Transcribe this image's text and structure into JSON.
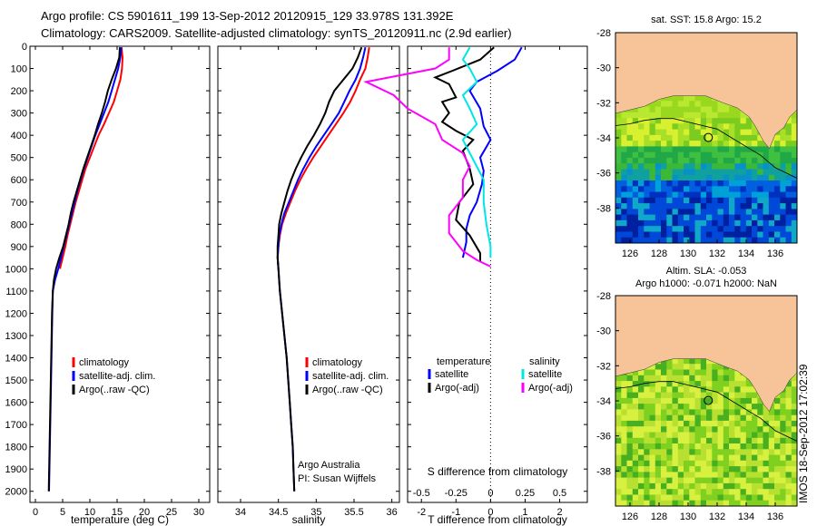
{
  "header": {
    "line1": "Argo profile: CS 5901611_199 13-Sep-2012 20120915_129 33.978S 131.392E",
    "line2": "Climatology: CARS2009. Satellite-adjusted climatology: synTS_20120911.nc (2.9d earlier)"
  },
  "side_stamp": "IMOS 18-Sep-2012 17:02:39",
  "colors": {
    "climatology": "#ff0000",
    "satellite": "#0000ff",
    "argo": "#000000",
    "salinity_satellite": "#00e5e5",
    "salinity_argo": "#ff00ff",
    "land": "#f7c49a"
  },
  "chart_data": [
    {
      "type": "line",
      "id": "temperature",
      "xlabel": "temperature (deg C)",
      "xlim": [
        -1,
        32
      ],
      "ylim": [
        2050,
        0
      ],
      "xticks": [
        0,
        5,
        10,
        15,
        20,
        25,
        30
      ],
      "yticks": [
        0,
        100,
        200,
        300,
        400,
        500,
        600,
        700,
        800,
        900,
        1000,
        1100,
        1200,
        1300,
        1400,
        1500,
        1600,
        1700,
        1800,
        1900,
        2000
      ],
      "legend": [
        "climatology",
        "satellite-adj. clim.",
        "Argo(..raw -QC)"
      ],
      "series": [
        {
          "name": "climatology",
          "color": "#ff0000",
          "points": [
            [
              15.8,
              5
            ],
            [
              16.0,
              50
            ],
            [
              15.9,
              100
            ],
            [
              15.6,
              150
            ],
            [
              15.0,
              200
            ],
            [
              14.4,
              250
            ],
            [
              13.5,
              300
            ],
            [
              12.6,
              350
            ],
            [
              11.6,
              400
            ],
            [
              10.8,
              450
            ],
            [
              10.0,
              500
            ],
            [
              9.2,
              550
            ],
            [
              8.6,
              600
            ],
            [
              8.0,
              650
            ],
            [
              7.4,
              700
            ],
            [
              6.9,
              750
            ],
            [
              6.4,
              800
            ],
            [
              5.9,
              850
            ],
            [
              5.5,
              900
            ],
            [
              5.0,
              950
            ],
            [
              4.5,
              1000
            ]
          ]
        },
        {
          "name": "satellite-adj. clim.",
          "color": "#0000ff",
          "points": [
            [
              15.8,
              5
            ],
            [
              15.6,
              50
            ],
            [
              15.2,
              100
            ],
            [
              14.6,
              150
            ],
            [
              14.0,
              200
            ],
            [
              13.4,
              250
            ],
            [
              12.6,
              300
            ],
            [
              11.8,
              350
            ],
            [
              11.0,
              400
            ],
            [
              10.3,
              450
            ],
            [
              9.6,
              500
            ],
            [
              8.9,
              550
            ],
            [
              8.3,
              600
            ],
            [
              7.7,
              650
            ],
            [
              7.2,
              700
            ],
            [
              6.7,
              750
            ],
            [
              6.2,
              800
            ],
            [
              5.7,
              850
            ],
            [
              5.2,
              900
            ],
            [
              4.7,
              950
            ],
            [
              4.2,
              1000
            ],
            [
              3.6,
              1050
            ],
            [
              3.2,
              1100
            ],
            [
              3.1,
              1200
            ],
            [
              2.95,
              1400
            ],
            [
              2.8,
              1600
            ],
            [
              2.65,
              1800
            ],
            [
              2.5,
              2000
            ]
          ]
        },
        {
          "name": "Argo(..raw -QC)",
          "color": "#000000",
          "points": [
            [
              15.5,
              5
            ],
            [
              15.4,
              50
            ],
            [
              14.8,
              100
            ],
            [
              14.0,
              150
            ],
            [
              13.3,
              200
            ],
            [
              12.8,
              250
            ],
            [
              12.2,
              300
            ],
            [
              11.5,
              350
            ],
            [
              10.9,
              400
            ],
            [
              10.2,
              450
            ],
            [
              9.5,
              500
            ],
            [
              8.8,
              550
            ],
            [
              8.2,
              600
            ],
            [
              7.6,
              650
            ],
            [
              7.0,
              700
            ],
            [
              6.5,
              750
            ],
            [
              6.1,
              800
            ],
            [
              5.6,
              850
            ],
            [
              5.1,
              900
            ],
            [
              4.4,
              950
            ],
            [
              3.8,
              1000
            ],
            [
              3.4,
              1050
            ],
            [
              3.2,
              1100
            ],
            [
              3.05,
              1200
            ],
            [
              2.9,
              1400
            ],
            [
              2.75,
              1600
            ],
            [
              2.6,
              1800
            ],
            [
              2.45,
              2000
            ]
          ]
        }
      ]
    },
    {
      "type": "line",
      "id": "salinity",
      "xlabel": "salinity",
      "xlim": [
        33.7,
        36.1
      ],
      "ylim": [
        2050,
        0
      ],
      "xticks": [
        34,
        34.5,
        35,
        35.5,
        36
      ],
      "legend": [
        "climatology",
        "satellite-adj. clim.",
        "Argo(..raw -QC)"
      ],
      "annotations": [
        "Argo Australia",
        "PI: Susan Wijffels"
      ],
      "series": [
        {
          "name": "climatology",
          "color": "#ff0000",
          "points": [
            [
              35.7,
              5
            ],
            [
              35.68,
              50
            ],
            [
              35.65,
              100
            ],
            [
              35.58,
              150
            ],
            [
              35.52,
              200
            ],
            [
              35.45,
              250
            ],
            [
              35.36,
              300
            ],
            [
              35.26,
              350
            ],
            [
              35.16,
              400
            ],
            [
              35.06,
              450
            ],
            [
              34.96,
              500
            ],
            [
              34.87,
              550
            ],
            [
              34.79,
              600
            ],
            [
              34.72,
              650
            ],
            [
              34.66,
              700
            ],
            [
              34.6,
              750
            ],
            [
              34.55,
              800
            ],
            [
              34.52,
              850
            ],
            [
              34.5,
              900
            ],
            [
              34.49,
              950
            ],
            [
              34.5,
              1000
            ]
          ]
        },
        {
          "name": "satellite-adj. clim.",
          "color": "#0000ff",
          "points": [
            [
              35.65,
              5
            ],
            [
              35.62,
              50
            ],
            [
              35.58,
              100
            ],
            [
              35.52,
              150
            ],
            [
              35.44,
              200
            ],
            [
              35.37,
              250
            ],
            [
              35.3,
              300
            ],
            [
              35.2,
              350
            ],
            [
              35.1,
              400
            ],
            [
              35.0,
              450
            ],
            [
              34.91,
              500
            ],
            [
              34.83,
              550
            ],
            [
              34.76,
              600
            ],
            [
              34.7,
              650
            ],
            [
              34.64,
              700
            ],
            [
              34.58,
              750
            ],
            [
              34.54,
              800
            ],
            [
              34.51,
              850
            ],
            [
              34.5,
              900
            ],
            [
              34.49,
              950
            ],
            [
              34.5,
              1000
            ],
            [
              34.52,
              1100
            ],
            [
              34.55,
              1200
            ],
            [
              34.58,
              1300
            ],
            [
              34.61,
              1400
            ],
            [
              34.63,
              1500
            ],
            [
              34.65,
              1600
            ],
            [
              34.67,
              1700
            ],
            [
              34.69,
              1800
            ],
            [
              34.7,
              1900
            ],
            [
              34.71,
              2000
            ]
          ]
        },
        {
          "name": "Argo(..raw -QC)",
          "color": "#000000",
          "points": [
            [
              35.6,
              5
            ],
            [
              35.55,
              50
            ],
            [
              35.48,
              100
            ],
            [
              35.36,
              150
            ],
            [
              35.24,
              200
            ],
            [
              35.17,
              250
            ],
            [
              35.12,
              300
            ],
            [
              35.05,
              350
            ],
            [
              34.97,
              400
            ],
            [
              34.88,
              450
            ],
            [
              34.8,
              500
            ],
            [
              34.73,
              550
            ],
            [
              34.67,
              600
            ],
            [
              34.62,
              650
            ],
            [
              34.58,
              700
            ],
            [
              34.54,
              750
            ],
            [
              34.51,
              800
            ],
            [
              34.5,
              850
            ],
            [
              34.49,
              900
            ],
            [
              34.49,
              950
            ],
            [
              34.5,
              1000
            ],
            [
              34.52,
              1100
            ],
            [
              34.55,
              1200
            ],
            [
              34.58,
              1300
            ],
            [
              34.61,
              1400
            ],
            [
              34.63,
              1500
            ],
            [
              34.65,
              1600
            ],
            [
              34.67,
              1700
            ],
            [
              34.69,
              1800
            ],
            [
              34.7,
              1900
            ],
            [
              34.71,
              2000
            ]
          ]
        }
      ]
    },
    {
      "type": "line",
      "id": "difference",
      "xlabel": "T difference from climatology",
      "xlabel_top": "S difference from climatology",
      "xlim": [
        -2.4,
        2.8
      ],
      "ylim": [
        2050,
        0
      ],
      "xticks": [
        -2,
        -1,
        0,
        1,
        2
      ],
      "xticks_top": [
        -0.5,
        -0.25,
        0,
        0.25,
        0.5
      ],
      "legend_headers": [
        "temperature",
        "salinity"
      ],
      "legend": [
        "satellite",
        "Argo(-adj)",
        "satellite",
        "Argo(-adj)"
      ],
      "series": [
        {
          "name": "satellite",
          "group": "temperature",
          "color": "#0000ff",
          "points": [
            [
              0.9,
              5
            ],
            [
              0.7,
              60
            ],
            [
              0.2,
              110
            ],
            [
              -0.4,
              160
            ],
            [
              -0.6,
              200
            ],
            [
              -0.3,
              280
            ],
            [
              -0.2,
              360
            ],
            [
              0.0,
              420
            ],
            [
              -0.3,
              500
            ],
            [
              -0.2,
              560
            ],
            [
              -0.25,
              620
            ],
            [
              -0.4,
              700
            ],
            [
              -0.6,
              760
            ],
            [
              -0.7,
              820
            ],
            [
              -0.7,
              880
            ],
            [
              -0.8,
              950
            ]
          ]
        },
        {
          "name": "Argo(-adj)",
          "group": "temperature",
          "color": "#000000",
          "points": [
            [
              0.1,
              5
            ],
            [
              -0.3,
              60
            ],
            [
              -1.1,
              110
            ],
            [
              -1.6,
              140
            ],
            [
              -1.2,
              170
            ],
            [
              -1.0,
              230
            ],
            [
              -1.4,
              250
            ],
            [
              -1.2,
              300
            ],
            [
              -1.4,
              340
            ],
            [
              -1.0,
              380
            ],
            [
              -0.5,
              420
            ],
            [
              -0.8,
              470
            ],
            [
              -0.6,
              550
            ],
            [
              -0.5,
              620
            ],
            [
              -0.9,
              700
            ],
            [
              -1.0,
              780
            ],
            [
              -0.6,
              850
            ],
            [
              -0.3,
              930
            ],
            [
              -0.3,
              970
            ]
          ]
        },
        {
          "name": "satellite",
          "group": "salinity",
          "color": "#00e5e5",
          "points": [
            [
              -0.15,
              5
            ],
            [
              -0.2,
              60
            ],
            [
              -0.15,
              100
            ],
            [
              -0.1,
              160
            ],
            [
              -0.2,
              220
            ],
            [
              -0.15,
              280
            ],
            [
              -0.1,
              350
            ],
            [
              -0.2,
              420
            ],
            [
              -0.15,
              480
            ],
            [
              -0.1,
              540
            ],
            [
              -0.05,
              600
            ],
            [
              -0.05,
              700
            ],
            [
              -0.03,
              800
            ],
            [
              0.0,
              900
            ],
            [
              0.0,
              950
            ]
          ]
        },
        {
          "name": "Argo(-adj)",
          "group": "salinity",
          "color": "#ff00ff",
          "points": [
            [
              -0.3,
              5
            ],
            [
              -0.3,
              60
            ],
            [
              -0.4,
              100
            ],
            [
              -0.9,
              160
            ],
            [
              -0.7,
              220
            ],
            [
              -0.6,
              280
            ],
            [
              -0.4,
              350
            ],
            [
              -0.35,
              420
            ],
            [
              -0.2,
              480
            ],
            [
              -0.15,
              540
            ],
            [
              -0.2,
              600
            ],
            [
              -0.2,
              680
            ],
            [
              -0.3,
              760
            ],
            [
              -0.3,
              840
            ],
            [
              -0.2,
              920
            ],
            [
              -0.1,
              960
            ],
            [
              0.0,
              990
            ]
          ]
        }
      ]
    },
    {
      "type": "heatmap",
      "id": "sst-map",
      "title": "sat. SST: 15.8 Argo: 15.2",
      "xlim": [
        125,
        137.5
      ],
      "ylim": [
        -40,
        -28
      ],
      "xticks": [
        126,
        128,
        130,
        132,
        134,
        136
      ],
      "yticks": [
        -28,
        -30,
        -32,
        -34,
        -36,
        -38
      ],
      "marker": [
        131.392,
        -33.978
      ]
    },
    {
      "type": "heatmap",
      "id": "sla-map",
      "title": "Altim. SLA: -0.053",
      "subtitle": "Argo h1000: -0.071 h2000: NaN",
      "xlim": [
        125,
        137.5
      ],
      "ylim": [
        -40,
        -28
      ],
      "xticks": [
        126,
        128,
        130,
        132,
        134,
        136
      ],
      "yticks": [
        -28,
        -30,
        -32,
        -34,
        -36,
        -38
      ],
      "marker": [
        131.392,
        -33.978
      ]
    }
  ]
}
